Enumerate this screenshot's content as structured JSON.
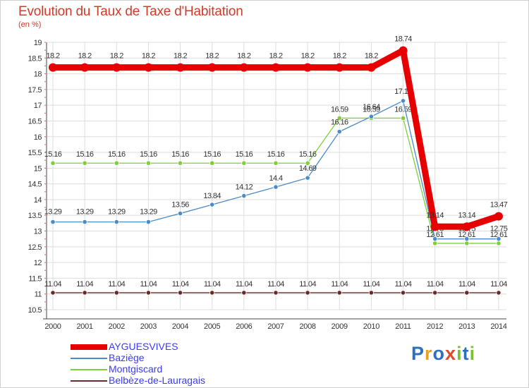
{
  "title": "Evolution du Taux de Taxe d'Habitation",
  "subtitle": "(en %)",
  "logo": {
    "text": "Proxiti",
    "colors": [
      "#2e6fc0",
      "#e8a020",
      "#2e6fc0",
      "#e04a2a",
      "#7bbf3a",
      "#2e6fc0",
      "#7bbf3a"
    ]
  },
  "chart_data": {
    "type": "line",
    "title": "Evolution du Taux de Taxe d'Habitation",
    "ylabel": "(en %)",
    "xlabel": "",
    "x": [
      2000,
      2001,
      2002,
      2003,
      2004,
      2005,
      2006,
      2007,
      2008,
      2009,
      2010,
      2011,
      2012,
      2013,
      2014
    ],
    "ylim": [
      10.5,
      19
    ],
    "yticks": [
      10.5,
      11,
      11.5,
      12,
      12.5,
      13,
      13.5,
      14,
      14.5,
      15,
      15.5,
      16,
      16.5,
      17,
      17.5,
      18,
      18.5,
      19
    ],
    "grid": true,
    "legend_position": "bottom-left",
    "series": [
      {
        "name": "Belbèze-de-Lauragais",
        "color": "#6b2a2a",
        "values": [
          11.04,
          11.04,
          11.04,
          11.04,
          11.04,
          11.04,
          11.04,
          11.04,
          11.04,
          11.04,
          11.04,
          11.04,
          11.04,
          11.04,
          11.04
        ],
        "labels": [
          "11.04",
          "11.04",
          "11.04",
          "11.04",
          "11.04",
          "11.04",
          "11.04",
          "11.04",
          "11.04",
          "11.04",
          "11.04",
          "11.04",
          "11.04",
          "11.04",
          "11.04"
        ]
      },
      {
        "name": "Montgiscard",
        "color": "#7fcf3c",
        "values": [
          15.16,
          15.16,
          15.16,
          15.16,
          15.16,
          15.16,
          15.16,
          15.16,
          15.16,
          16.59,
          16.59,
          16.59,
          12.61,
          12.61,
          12.61
        ],
        "labels": [
          "15.16",
          "15.16",
          "15.16",
          "15.16",
          "15.16",
          "15.16",
          "15.16",
          "15.16",
          "15.16",
          "16.59",
          "16.59",
          "16.59",
          "12.61",
          "12.61",
          "12.61"
        ]
      },
      {
        "name": "Baziège",
        "color": "#4a8cc8",
        "values": [
          13.29,
          13.29,
          13.29,
          13.29,
          13.56,
          13.84,
          14.12,
          14.4,
          14.69,
          16.16,
          16.64,
          17.14,
          12.75,
          12.75,
          12.75
        ],
        "labels": [
          "13.29",
          "13.29",
          "13.29",
          "13.29",
          "13.56",
          "13.84",
          "14.12",
          "14.4",
          "14.69",
          "16.16",
          "16.64",
          "17.14",
          "12.75",
          "12.75",
          "12.75"
        ]
      },
      {
        "name": "AYGUESVIVES",
        "color": "#e60000",
        "values": [
          18.2,
          18.2,
          18.2,
          18.2,
          18.2,
          18.2,
          18.2,
          18.2,
          18.2,
          18.2,
          18.2,
          18.74,
          13.14,
          13.14,
          13.47
        ],
        "labels": [
          "18.2",
          "18.2",
          "18.2",
          "18.2",
          "18.2",
          "18.2",
          "18.2",
          "18.2",
          "18.2",
          "18.2",
          "18.2",
          "18.74",
          "13.14",
          "13.14",
          "13.47"
        ]
      }
    ],
    "legend": [
      {
        "name": "AYGUESVIVES",
        "color": "#e60000"
      },
      {
        "name": "Baziège",
        "color": "#4a8cc8"
      },
      {
        "name": "Montgiscard",
        "color": "#7fcf3c"
      },
      {
        "name": "Belbèze-de-Lauragais",
        "color": "#6b2a2a"
      }
    ]
  }
}
